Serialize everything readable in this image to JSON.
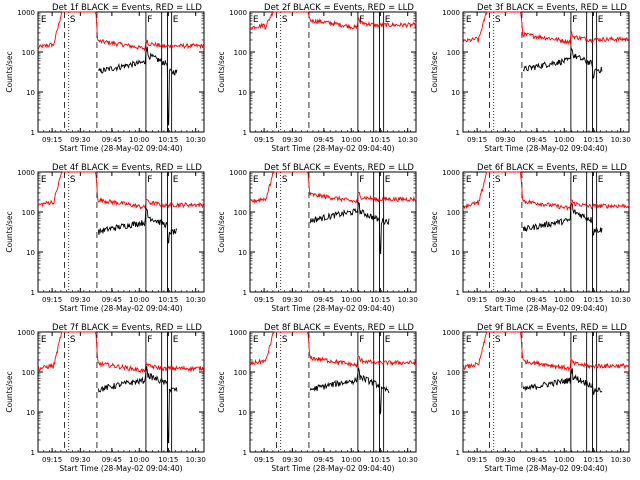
{
  "chart_data": [
    {
      "type": "line",
      "title": "Det 1f BLACK = Events, RED = LLD",
      "ylabel": "Counts/sec",
      "xlabel": "Start Time (28-May-02 09:04:40)",
      "x_ticks": [
        "09:15",
        "09:30",
        "09:45",
        "10:00",
        "10:15",
        "10:30"
      ],
      "y_ticks": [
        "1",
        "10",
        "100",
        "1000"
      ],
      "ylim": [
        1,
        1000
      ],
      "yscale": "log",
      "markers": [
        "E",
        "S",
        "F",
        "E"
      ],
      "series": [
        {
          "color": "#ff0000",
          "baseline": 150,
          "peak": 1000,
          "preflare": 130,
          "dip": 100
        },
        {
          "color": "#000000",
          "baseline": 40,
          "peak": 120,
          "min": 1.5
        }
      ]
    },
    {
      "type": "line",
      "title": "Det 2f BLACK = Events, RED = LLD",
      "ylabel": "Counts/sec",
      "xlabel": "Start Time (28-May-02 09:04:40)",
      "x_ticks": [
        "09:15",
        "09:30",
        "09:45",
        "10:00",
        "10:15",
        "10:30"
      ],
      "y_ticks": [
        "1",
        "10",
        "100",
        "1000"
      ],
      "ylim": [
        1,
        1000
      ],
      "yscale": "log",
      "markers": [
        "E",
        "S",
        "F",
        "E"
      ],
      "series": [
        {
          "color": "#ff0000",
          "baseline": 500,
          "peak": 1000,
          "preflare": 400,
          "dip": 450
        }
      ]
    },
    {
      "type": "line",
      "title": "Det 3f BLACK = Events, RED = LLD",
      "ylabel": "Counts/sec",
      "xlabel": "Start Time (28-May-02 09:04:40)",
      "x_ticks": [
        "09:15",
        "09:30",
        "09:45",
        "10:00",
        "10:15",
        "10:30"
      ],
      "y_ticks": [
        "1",
        "10",
        "100",
        "1000"
      ],
      "ylim": [
        1,
        1000
      ],
      "yscale": "log",
      "markers": [
        "E",
        "S",
        "F",
        "E"
      ],
      "series": [
        {
          "color": "#ff0000",
          "baseline": 220,
          "peak": 1000,
          "preflare": 180,
          "dip": 180
        },
        {
          "color": "#000000",
          "baseline": 45,
          "peak": 120,
          "min": 20
        }
      ]
    },
    {
      "type": "line",
      "title": "Det 4f BLACK = Events, RED = LLD",
      "ylabel": "Counts/sec",
      "xlabel": "Start Time (28-May-02 09:04:40)",
      "x_ticks": [
        "09:15",
        "09:30",
        "09:45",
        "10:00",
        "10:15",
        "10:30"
      ],
      "y_ticks": [
        "1",
        "10",
        "100",
        "1000"
      ],
      "ylim": [
        1,
        1000
      ],
      "yscale": "log",
      "markers": [
        "E",
        "S",
        "F",
        "E"
      ],
      "series": [
        {
          "color": "#ff0000",
          "baseline": 160,
          "peak": 1000,
          "preflare": 150,
          "dip": 160
        },
        {
          "color": "#000000",
          "baseline": 40,
          "peak": 110,
          "min": 15
        }
      ]
    },
    {
      "type": "line",
      "title": "Det 5f BLACK = Events, RED = LLD",
      "ylabel": "Counts/sec",
      "xlabel": "Start Time (28-May-02 09:04:40)",
      "x_ticks": [
        "09:15",
        "09:30",
        "09:45",
        "10:00",
        "10:15",
        "10:30"
      ],
      "y_ticks": [
        "1",
        "10",
        "100",
        "1000"
      ],
      "ylim": [
        1,
        1000
      ],
      "yscale": "log",
      "markers": [
        "E",
        "S",
        "F",
        "E"
      ],
      "series": [
        {
          "color": "#ff0000",
          "baseline": 220,
          "peak": 1000,
          "preflare": 180,
          "dip": 200
        },
        {
          "color": "#000000",
          "baseline": 75,
          "peak": 150,
          "min": 10
        }
      ]
    },
    {
      "type": "line",
      "title": "Det 6f BLACK = Events, RED = LLD",
      "ylabel": "Counts/sec",
      "xlabel": "Start Time (28-May-02 09:04:40)",
      "x_ticks": [
        "09:15",
        "09:30",
        "09:45",
        "10:00",
        "10:15",
        "10:30"
      ],
      "y_ticks": [
        "1",
        "10",
        "100",
        "1000"
      ],
      "ylim": [
        1,
        1000
      ],
      "yscale": "log",
      "markers": [
        "E",
        "S",
        "F",
        "E"
      ],
      "series": [
        {
          "color": "#ff0000",
          "baseline": 150,
          "peak": 1000,
          "preflare": 140,
          "dip": 150
        },
        {
          "color": "#000000",
          "baseline": 45,
          "peak": 150,
          "min": 30
        }
      ]
    },
    {
      "type": "line",
      "title": "Det 7f BLACK = Events, RED = LLD",
      "ylabel": "Counts/sec",
      "xlabel": "Start Time (28-May-02 09:04:40)",
      "x_ticks": [
        "09:15",
        "09:30",
        "09:45",
        "10:00",
        "10:15",
        "10:30"
      ],
      "y_ticks": [
        "1",
        "10",
        "100",
        "1000"
      ],
      "ylim": [
        1,
        1000
      ],
      "yscale": "log",
      "markers": [
        "E",
        "S",
        "F",
        "E"
      ],
      "series": [
        {
          "color": "#ff0000",
          "baseline": 130,
          "peak": 1000,
          "preflare": 120,
          "dip": 130
        },
        {
          "color": "#000000",
          "baseline": 45,
          "peak": 120,
          "min": 2
        }
      ]
    },
    {
      "type": "line",
      "title": "Det 8f BLACK = Events, RED = LLD",
      "ylabel": "Counts/sec",
      "xlabel": "Start Time (28-May-02 09:04:40)",
      "x_ticks": [
        "09:15",
        "09:30",
        "09:45",
        "10:00",
        "10:15",
        "10:30"
      ],
      "y_ticks": [
        "1",
        "10",
        "100",
        "1000"
      ],
      "ylim": [
        1,
        1000
      ],
      "yscale": "log",
      "markers": [
        "E",
        "S",
        "F",
        "E"
      ],
      "series": [
        {
          "color": "#ff0000",
          "baseline": 180,
          "peak": 1000,
          "preflare": 160,
          "dip": 170
        },
        {
          "color": "#000000",
          "baseline": 45,
          "peak": 110,
          "min": 10
        }
      ]
    },
    {
      "type": "line",
      "title": "Det 9f BLACK = Events, RED = LLD",
      "ylabel": "Counts/sec",
      "xlabel": "Start Time (28-May-02 09:04:40)",
      "x_ticks": [
        "09:15",
        "09:30",
        "09:45",
        "10:00",
        "10:15",
        "10:30"
      ],
      "y_ticks": [
        "1",
        "10",
        "100",
        "1000"
      ],
      "ylim": [
        1,
        1000
      ],
      "yscale": "log",
      "markers": [
        "E",
        "S",
        "F",
        "E"
      ],
      "series": [
        {
          "color": "#ff0000",
          "baseline": 150,
          "peak": 1000,
          "preflare": 130,
          "dip": 150
        },
        {
          "color": "#000000",
          "baseline": 45,
          "peak": 110,
          "min": 30
        }
      ]
    }
  ]
}
